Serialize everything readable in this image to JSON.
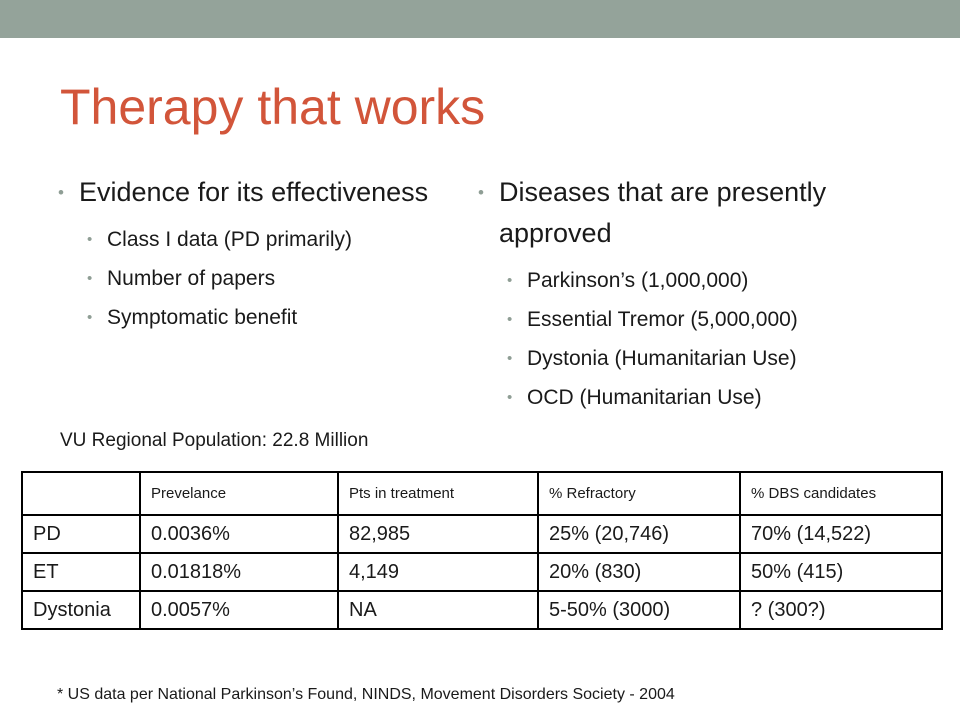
{
  "slide": {
    "title": "Therapy that works",
    "left": {
      "heading": "Evidence for its effectiveness",
      "items": [
        "Class I data (PD primarily)",
        "Number of papers",
        "Symptomatic benefit"
      ]
    },
    "right": {
      "heading": "Diseases that are presently approved",
      "items": [
        "Parkinson’s (1,000,000)",
        "Essential Tremor (5,000,000)",
        "Dystonia (Humanitarian Use)",
        "OCD (Humanitarian Use)"
      ]
    },
    "population_note": "VU Regional Population:  22.8 Million",
    "table": {
      "headers": [
        "",
        "Prevelance",
        "Pts in treatment",
        "% Refractory",
        "% DBS candidates"
      ],
      "rows": [
        [
          "PD",
          "0.0036%",
          "82,985",
          "25% (20,746)",
          "70% (14,522)"
        ],
        [
          "ET",
          "0.01818%",
          "4,149",
          "20% (830)",
          "50% (415)"
        ],
        [
          "Dystonia",
          "0.0057%",
          "NA",
          "5-50% (3000)",
          "? (300?)"
        ]
      ]
    },
    "footnote": "* US data per National Parkinson’s Found, NINDS, Movement Disorders Society - 2004"
  },
  "colors": {
    "topbar": "#94a39a",
    "title": "#d2553a",
    "bullet": "#8f9e95"
  }
}
